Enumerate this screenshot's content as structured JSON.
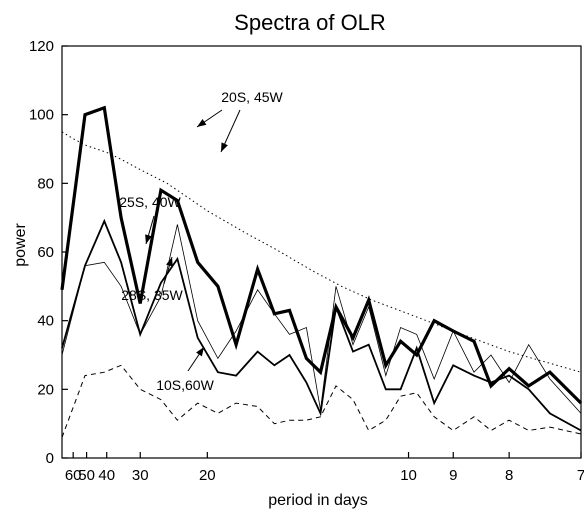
{
  "chart_data": {
    "type": "line",
    "title": "Spectra of OLR",
    "xlabel": "period in days",
    "ylabel": "power",
    "xlim": [
      72,
      7
    ],
    "ylim": [
      0,
      120
    ],
    "x_scale": "reciprocal",
    "x_ticks": [
      60,
      50,
      40,
      30,
      20,
      10,
      9,
      8,
      7
    ],
    "y_ticks": [
      0,
      20,
      40,
      60,
      80,
      100,
      120
    ],
    "grid": false,
    "series": [
      {
        "name": "20S, 45W",
        "style": "thick",
        "color": "#000000",
        "x": [
          72,
          51,
          41,
          35,
          30,
          26,
          23.5,
          21,
          19,
          17.5,
          16,
          15,
          14.2,
          13.4,
          12.8,
          12.2,
          11.6,
          11.1,
          10.6,
          10.2,
          9.8,
          9.4,
          9.0,
          8.6,
          8.3,
          8.0,
          7.7,
          7.4,
          7.0
        ],
        "y": [
          49,
          100,
          102,
          70,
          45,
          78,
          75,
          57,
          50,
          33,
          55,
          42,
          43,
          29,
          25,
          44,
          35,
          46,
          27,
          34,
          30,
          40,
          37,
          34,
          21,
          26,
          21,
          25,
          16
        ]
      },
      {
        "name": "25S, 40W",
        "style": "medium",
        "color": "#000000",
        "x": [
          72,
          51,
          41,
          35,
          30,
          26,
          23.5,
          21,
          19,
          17.5,
          16,
          15,
          14.2,
          13.4,
          12.8,
          12.2,
          11.6,
          11.1,
          10.6,
          10.2,
          9.8,
          9.4,
          9.0,
          8.6,
          8.3,
          8.0,
          7.7,
          7.4,
          7.0
        ],
        "y": [
          32,
          56,
          69,
          57,
          36,
          51,
          58,
          35,
          25,
          24,
          31,
          27,
          30,
          22,
          13,
          44,
          31,
          33,
          20,
          20,
          32,
          16,
          27,
          24,
          22,
          24,
          20,
          13,
          8
        ]
      },
      {
        "name": "28S, 35W",
        "style": "thin",
        "color": "#000000",
        "x": [
          72,
          51,
          41,
          35,
          30,
          26,
          23.5,
          21,
          19,
          17.5,
          16,
          15,
          14.2,
          13.4,
          12.8,
          12.2,
          11.6,
          11.1,
          10.6,
          10.2,
          9.8,
          9.4,
          9.0,
          8.6,
          8.3,
          8.0,
          7.7,
          7.4,
          7.0
        ],
        "y": [
          30,
          56,
          57,
          50,
          36,
          47,
          68,
          40,
          29,
          37,
          49,
          42,
          36,
          38,
          14,
          50,
          33,
          44,
          24,
          38,
          36,
          23,
          37,
          25,
          30,
          22,
          33,
          23,
          13
        ]
      },
      {
        "name": "10S,60W",
        "style": "dashed",
        "color": "#000000",
        "x": [
          72,
          51,
          41,
          35,
          30,
          26,
          23.5,
          21,
          19,
          17.5,
          16,
          15,
          14.2,
          13.4,
          12.8,
          12.2,
          11.6,
          11.1,
          10.6,
          10.2,
          9.8,
          9.4,
          9.0,
          8.6,
          8.3,
          8.0,
          7.7,
          7.4,
          7.0
        ],
        "y": [
          6,
          24,
          25,
          27,
          20,
          17,
          11,
          16,
          13,
          16,
          15,
          10,
          11,
          11,
          12,
          21,
          17,
          8,
          11,
          18,
          19,
          12,
          8,
          12,
          8,
          11,
          8,
          9,
          7
        ]
      },
      {
        "style": "dotted",
        "color": "#000000",
        "x": [
          72,
          60,
          50,
          40,
          35,
          30,
          25,
          20,
          17,
          15,
          13,
          12,
          11,
          10,
          9,
          8,
          7
        ],
        "y": [
          95,
          93,
          91,
          89,
          87,
          84,
          80,
          72,
          66,
          61,
          54,
          50,
          46,
          42,
          37,
          31,
          25
        ]
      }
    ],
    "annotations": [
      {
        "text": "20S, 45W",
        "series": "20S, 45W"
      },
      {
        "text": "25S, 40W",
        "series": "25S, 40W"
      },
      {
        "text": "28S, 35W",
        "series": "28S, 35W"
      },
      {
        "text": "10S,60W",
        "series": "10S,60W"
      }
    ]
  }
}
